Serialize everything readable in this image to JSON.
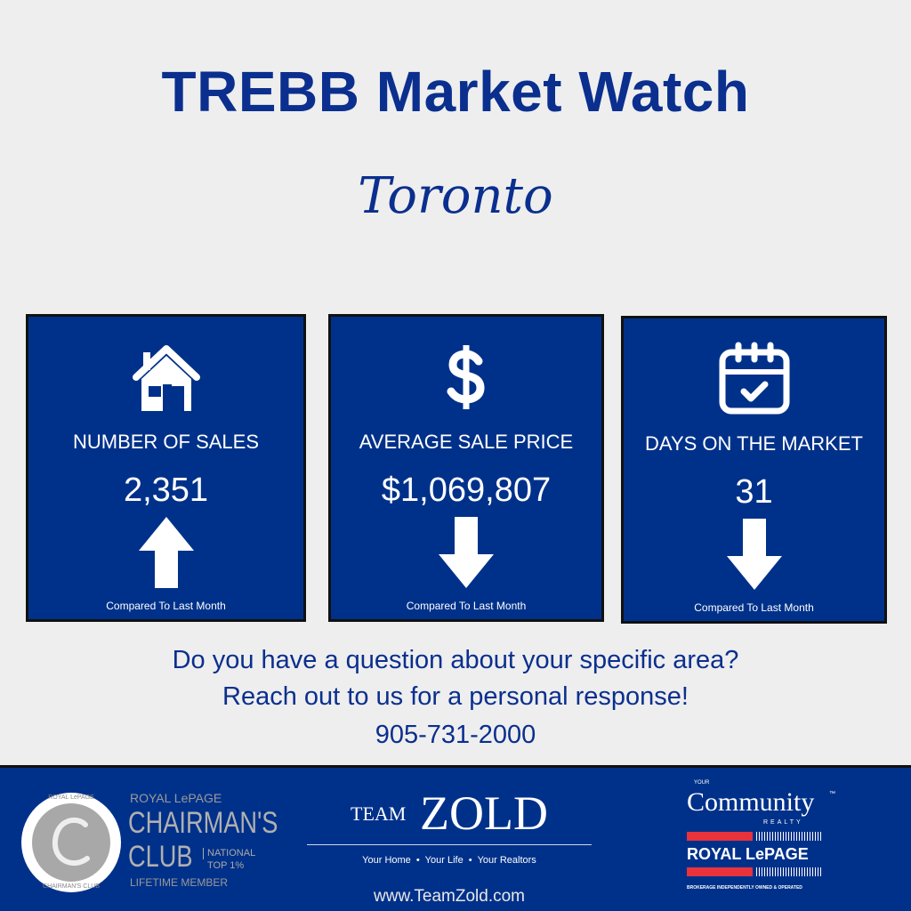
{
  "header": {
    "title": "TREBB Market Watch",
    "city": "Toronto"
  },
  "cards": [
    {
      "icon": "house-icon",
      "label": "NUMBER OF SALES",
      "value": "2,351",
      "trend": "up",
      "compare": "Compared To Last Month"
    },
    {
      "icon": "dollar-icon",
      "label": "AVERAGE SALE PRICE",
      "value": "$1,069,807",
      "trend": "down",
      "compare": "Compared To Last Month"
    },
    {
      "icon": "calendar-check-icon",
      "label": "DAYS ON THE MARKET",
      "value": "31",
      "trend": "down",
      "compare": "Compared To Last Month"
    }
  ],
  "cta": {
    "line1": "Do you have a question about your specific area?",
    "line2": "Reach out to us for a personal response!",
    "phone": "905-731-2000"
  },
  "footer": {
    "chairmans": {
      "seal_top": "ROYAL LePAGE",
      "seal_bottom": "CHAIRMAN'S CLUB",
      "line1": "ROYAL LePAGE",
      "line2": "CHAIRMAN'S",
      "line3": "CLUB",
      "badge1": "NATIONAL",
      "badge2": "TOP 1%",
      "line4": "LIFETIME MEMBER"
    },
    "teamzold": {
      "team": "TEAM",
      "zold": "ZOLD",
      "tagline": "Your Home  •  Your Life  •  Your Realtors"
    },
    "website": "www.TeamZold.com",
    "brokerage": {
      "your": "YOUR",
      "community": "Community",
      "tm": "™",
      "realty": "REALTY",
      "royal": "ROYAL LePAGE",
      "fine": "BROKERAGE INDEPENDENTLY OWNED & OPERATED"
    }
  },
  "colors": {
    "brand_blue": "#00318a",
    "title_blue": "#0b2f8e",
    "background": "#eeeeee",
    "royal_red": "#e8323c"
  }
}
